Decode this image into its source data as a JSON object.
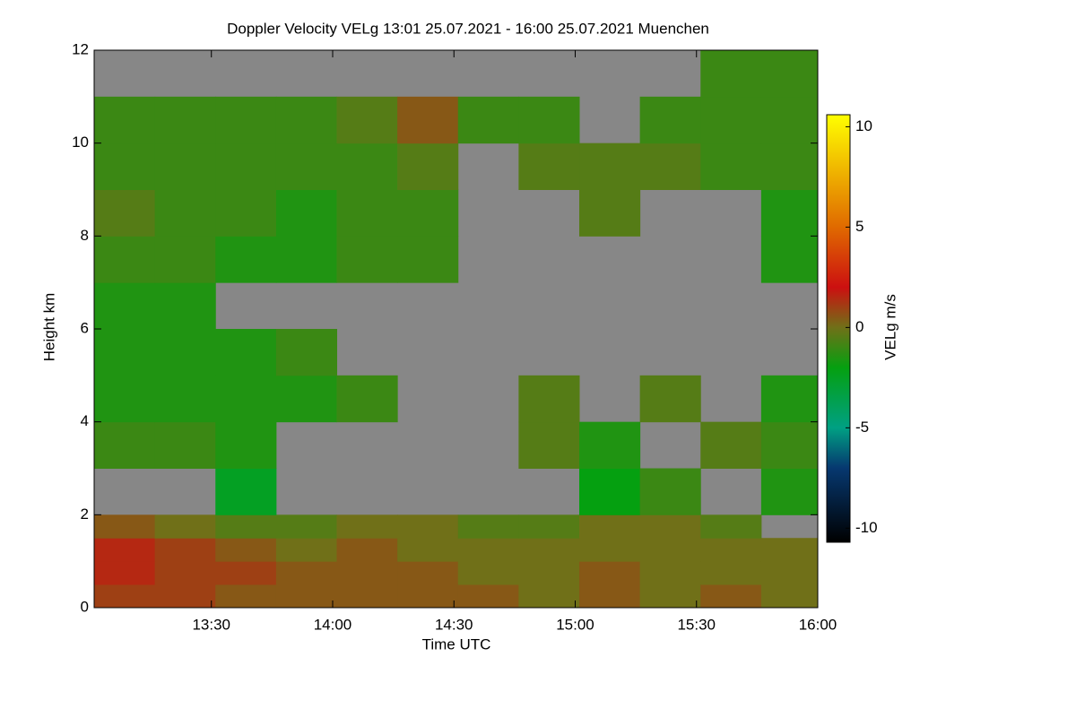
{
  "chart_data": {
    "type": "heatmap",
    "title": "Doppler Velocity VELg   13:01 25.07.2021 - 16:00 25.07.2021 Muenchen",
    "xlabel": "Time UTC",
    "ylabel": "Height km",
    "colorbar_label": "VELg m/s",
    "xlim": [
      781,
      960
    ],
    "xticks": [
      {
        "value": 810,
        "label": "13:30"
      },
      {
        "value": 840,
        "label": "14:00"
      },
      {
        "value": 870,
        "label": "14:30"
      },
      {
        "value": 900,
        "label": "15:00"
      },
      {
        "value": 930,
        "label": "15:30"
      },
      {
        "value": 960,
        "label": "16:00"
      }
    ],
    "ylim": [
      0,
      12
    ],
    "yticks": [
      0,
      2,
      4,
      6,
      8,
      10,
      12
    ],
    "zlim": [
      -10.7,
      10.6
    ],
    "zticks": [
      -10,
      -5,
      0,
      5,
      10
    ],
    "background_color": "#878787",
    "colorscale": [
      {
        "value": -10.7,
        "color": "#000000"
      },
      {
        "value": -7,
        "color": "#063870"
      },
      {
        "value": -5,
        "color": "#00a083"
      },
      {
        "value": -2,
        "color": "#05a010"
      },
      {
        "value": 0,
        "color": "#707018"
      },
      {
        "value": 2,
        "color": "#cc1010"
      },
      {
        "value": 5,
        "color": "#e06a00"
      },
      {
        "value": 10.6,
        "color": "#ffff00"
      }
    ],
    "x_edges": [
      781,
      796,
      811,
      826,
      841,
      856,
      871,
      886,
      901,
      916,
      931,
      946,
      960
    ],
    "y_edges": [
      0,
      0.5,
      1,
      1.5,
      2,
      3,
      4,
      5,
      6,
      7,
      8,
      9,
      10,
      11,
      12
    ],
    "z": [
      [
        1,
        1,
        0.5,
        0.5,
        0.5,
        0.5,
        0.5,
        0,
        0.5,
        0,
        0.5,
        0
      ],
      [
        1.5,
        1,
        1,
        0.5,
        0.5,
        0.5,
        0,
        0,
        0.5,
        0,
        0,
        0
      ],
      [
        1.5,
        1,
        0.5,
        0,
        0.5,
        0,
        0,
        0,
        0,
        0,
        0,
        0
      ],
      [
        0.5,
        0,
        -0.5,
        -0.5,
        0,
        0,
        -0.5,
        -0.5,
        0,
        0,
        -0.5,
        null
      ],
      [
        null,
        null,
        -2.5,
        null,
        null,
        null,
        null,
        null,
        -2,
        -1,
        null,
        -1.5
      ],
      [
        -1,
        -1,
        -1.5,
        null,
        null,
        null,
        null,
        -0.5,
        -1.5,
        null,
        -0.5,
        -1
      ],
      [
        -1.5,
        -1.5,
        -1.5,
        -1.5,
        -1,
        null,
        null,
        -0.5,
        null,
        -0.5,
        null,
        -1.5
      ],
      [
        -1.5,
        -1.5,
        -1.5,
        -1,
        null,
        null,
        null,
        null,
        null,
        null,
        null,
        null
      ],
      [
        -1.5,
        -1.5,
        null,
        null,
        null,
        null,
        null,
        null,
        null,
        null,
        null,
        null
      ],
      [
        -1,
        -1,
        -1.5,
        -1.5,
        -1,
        -1,
        null,
        null,
        null,
        null,
        null,
        -1.5
      ],
      [
        -0.5,
        -1,
        -1,
        -1.5,
        -1,
        -1,
        null,
        null,
        -0.5,
        null,
        null,
        -1.5
      ],
      [
        -1,
        -1,
        -1,
        -1,
        -1,
        -0.5,
        null,
        -0.5,
        -0.5,
        -0.5,
        -1,
        -1
      ],
      [
        -1,
        -1,
        -1,
        -1,
        -0.5,
        0.5,
        -1,
        -1,
        null,
        -1,
        -1,
        -1
      ],
      [
        null,
        null,
        null,
        null,
        null,
        null,
        null,
        null,
        null,
        null,
        -1,
        -1
      ]
    ]
  }
}
